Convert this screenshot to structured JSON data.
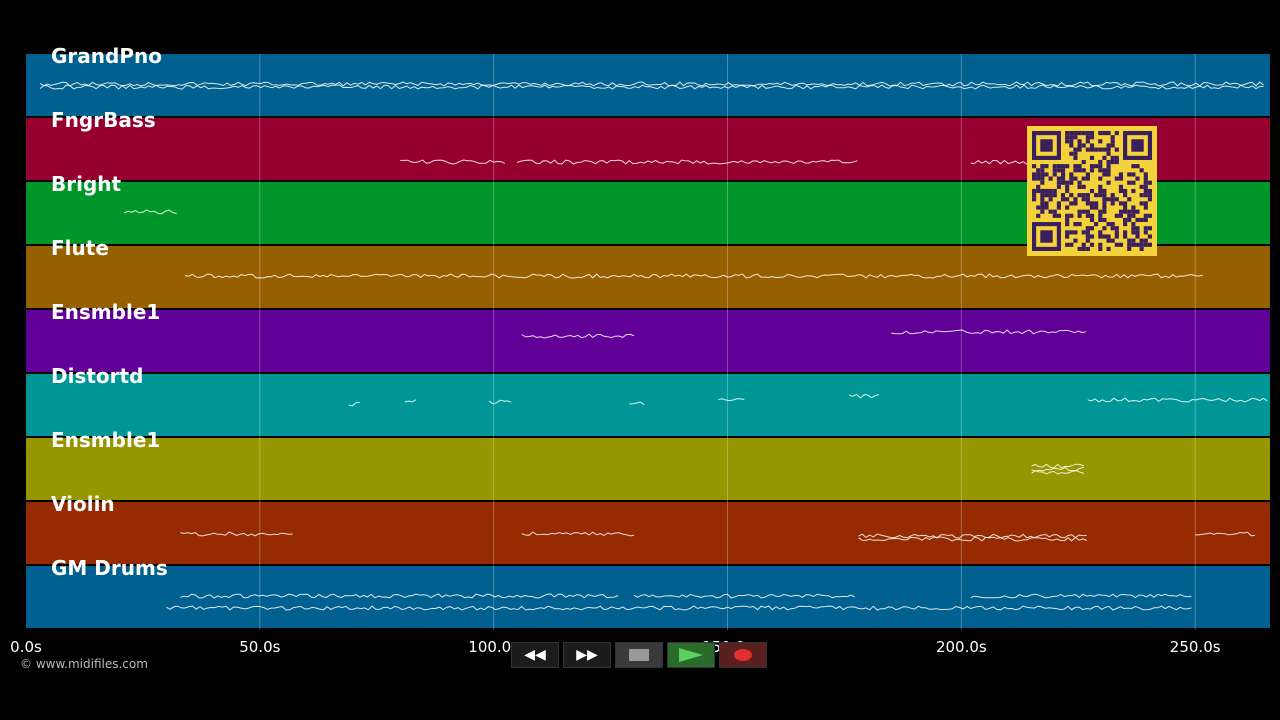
{
  "tracks": [
    {
      "name": "GrandPno",
      "color": "#00608f"
    },
    {
      "name": "FngrBass",
      "color": "#960030"
    },
    {
      "name": "Bright",
      "color": "#00962a"
    },
    {
      "name": "Flute",
      "color": "#966000"
    },
    {
      "name": "Ensmble1",
      "color": "#600096"
    },
    {
      "name": "Distortd",
      "color": "#009696"
    },
    {
      "name": "Ensmble1",
      "color": "#969600"
    },
    {
      "name": "Violin",
      "color": "#962a00"
    },
    {
      "name": "GM Drums",
      "color": "#00608f"
    }
  ],
  "timeline": {
    "duration_s": 266,
    "ticks": [
      {
        "t": 0,
        "label": "0.0s"
      },
      {
        "t": 50,
        "label": "50.0s"
      },
      {
        "t": 100,
        "label": "100.0s"
      },
      {
        "t": 150,
        "label": "150.0s"
      },
      {
        "t": 200,
        "label": "200.0s"
      },
      {
        "t": 250,
        "label": "250.0s"
      }
    ]
  },
  "copyright": "© www.midifiles.com",
  "transport": {
    "rewind": "rewind-icon",
    "fast_forward": "fast-forward-icon",
    "stop": "stop-icon",
    "play": "play-icon",
    "record": "record-icon"
  },
  "qr_color": "#f3d23c"
}
